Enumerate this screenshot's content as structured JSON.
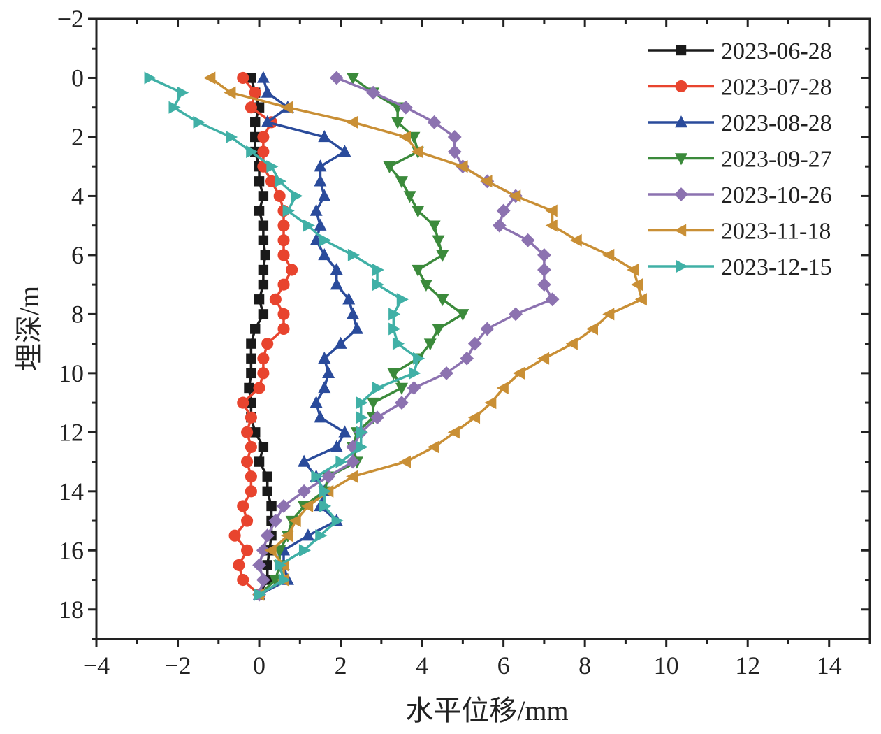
{
  "chart_data": {
    "type": "line",
    "title": "",
    "xlabel": "水平位移/mm",
    "ylabel": "埋深/m",
    "xlim": [
      -4,
      15
    ],
    "ylim": [
      -2,
      19
    ],
    "y_inverted": true,
    "xticks": [
      -4,
      -2,
      0,
      2,
      4,
      6,
      8,
      10,
      12,
      14
    ],
    "yticks": [
      -2,
      0,
      2,
      4,
      6,
      8,
      10,
      12,
      14,
      16,
      18
    ],
    "grid": false,
    "legend_position": "top-right",
    "depth": [
      0,
      0.5,
      1,
      1.5,
      2,
      2.5,
      3,
      3.5,
      4,
      4.5,
      5,
      5.5,
      6,
      6.5,
      7,
      7.5,
      8,
      8.5,
      9,
      9.5,
      10,
      10.5,
      11,
      11.5,
      12,
      12.5,
      13,
      13.5,
      14,
      14.5,
      15,
      15.5,
      16,
      16.5,
      17,
      17.5
    ],
    "series": [
      {
        "name": "2023-06-28",
        "color": "#1a1a1a",
        "marker": "square",
        "values": [
          -0.2,
          -0.1,
          0,
          -0.1,
          -0.1,
          -0.1,
          0,
          0,
          0.1,
          0,
          0.1,
          0.1,
          0.15,
          0.1,
          0.1,
          0,
          0.1,
          -0.1,
          -0.2,
          -0.2,
          -0.2,
          -0.25,
          -0.2,
          -0.2,
          -0.1,
          0.1,
          0,
          0.2,
          0.2,
          0.3,
          0.3,
          0.3,
          0.25,
          0.2,
          0.2,
          0
        ]
      },
      {
        "name": "2023-07-28",
        "color": "#e8442e",
        "marker": "circle",
        "values": [
          -0.4,
          -0.1,
          -0.2,
          0.3,
          0.1,
          0.1,
          0.1,
          0.3,
          0.5,
          0.6,
          0.6,
          0.6,
          0.6,
          0.8,
          0.6,
          0.4,
          0.6,
          0.6,
          0.2,
          0.1,
          0.1,
          0,
          -0.4,
          -0.2,
          -0.3,
          -0.2,
          -0.3,
          -0.2,
          -0.2,
          -0.4,
          -0.3,
          -0.6,
          -0.3,
          -0.5,
          -0.4,
          0
        ]
      },
      {
        "name": "2023-08-28",
        "color": "#2a4b9b",
        "marker": "triangle-up",
        "values": [
          0.1,
          0.2,
          0.7,
          0.2,
          1.6,
          2.1,
          1.5,
          1.5,
          1.6,
          1.4,
          1.5,
          1.4,
          1.6,
          1.9,
          1.9,
          2.2,
          2.3,
          2.4,
          2.0,
          1.6,
          1.7,
          1.6,
          1.4,
          1.5,
          2.1,
          1.9,
          1.1,
          1.4,
          1.6,
          1.5,
          1.9,
          1.2,
          0.6,
          0.6,
          0.7,
          0
        ]
      },
      {
        "name": "2023-09-27",
        "color": "#3b8a3b",
        "marker": "triangle-down",
        "values": [
          2.3,
          2.8,
          3.4,
          3.4,
          3.8,
          3.9,
          3.2,
          3.5,
          3.7,
          3.9,
          4.3,
          4.4,
          4.5,
          3.9,
          4.1,
          4.5,
          5.0,
          4.4,
          4.2,
          3.9,
          3.3,
          3.5,
          2.8,
          2.8,
          2.4,
          2.3,
          2.4,
          1.7,
          1.6,
          1.1,
          0.8,
          0.7,
          0.5,
          0.5,
          0.4,
          0
        ]
      },
      {
        "name": "2023-10-26",
        "color": "#8c72b0",
        "marker": "diamond",
        "values": [
          1.9,
          2.8,
          3.6,
          4.3,
          4.8,
          4.8,
          5.0,
          5.6,
          6.3,
          6.0,
          5.9,
          6.6,
          7.0,
          7.0,
          7.0,
          7.2,
          6.3,
          5.6,
          5.3,
          5.1,
          4.6,
          3.8,
          3.5,
          2.9,
          2.5,
          2.3,
          2.3,
          1.7,
          1.1,
          0.6,
          0.4,
          0.2,
          0.1,
          0,
          0.1,
          0
        ]
      },
      {
        "name": "2023-11-18",
        "color": "#c98f35",
        "marker": "triangle-left",
        "values": [
          -1.2,
          -0.7,
          0.7,
          2.3,
          3.6,
          3.9,
          5.0,
          5.6,
          6.3,
          7.2,
          7.2,
          7.8,
          8.6,
          9.2,
          9.3,
          9.4,
          8.6,
          8.2,
          7.7,
          7.0,
          6.4,
          6.0,
          5.7,
          5.3,
          4.8,
          4.3,
          3.6,
          2.3,
          1.7,
          1.2,
          0.9,
          0.7,
          0.3,
          0.6,
          0.6,
          0
        ]
      },
      {
        "name": "2023-12-15",
        "color": "#40b0a6",
        "marker": "triangle-right",
        "values": [
          -2.7,
          -1.9,
          -2.1,
          -1.5,
          -0.7,
          -0.2,
          0.3,
          0.5,
          0.9,
          0.7,
          1.2,
          1.6,
          2.3,
          2.9,
          2.9,
          3.5,
          3.3,
          3.3,
          3.4,
          3.9,
          3.8,
          2.9,
          2.5,
          2.5,
          2.5,
          2.5,
          2.0,
          1.4,
          1.6,
          1.6,
          1.9,
          1.5,
          1.1,
          0.5,
          0.6,
          0
        ]
      }
    ]
  }
}
